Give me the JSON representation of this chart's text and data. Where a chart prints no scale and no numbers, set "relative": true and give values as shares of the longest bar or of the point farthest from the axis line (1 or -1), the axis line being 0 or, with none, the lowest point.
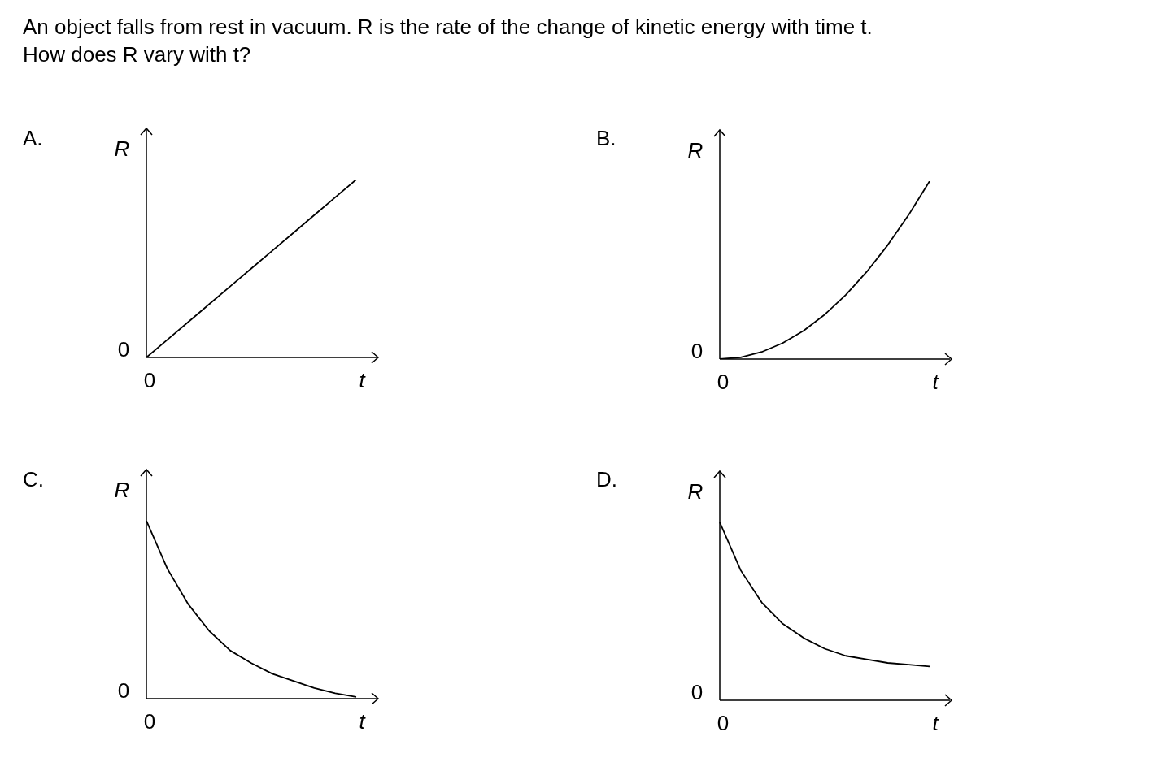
{
  "chart_data": [
    {
      "type": "line",
      "title": "A.",
      "subtitle": "An object falls from rest in vacuum. R is the rate of the change of kinetic energy with time t.\nHow does R vary with t?",
      "xlabel": "t",
      "ylabel": "R",
      "relative": true,
      "annotations": [
        "0",
        "0"
      ],
      "categories": [
        null,
        null,
        null,
        null,
        null,
        null,
        null,
        null,
        null,
        null,
        null
      ],
      "series": [
        {
          "color": "#000000",
          "values": [
            0,
            0.1,
            0.2,
            0.3,
            0.4,
            0.5,
            0.6,
            0.7,
            0.8,
            0.9,
            1
          ]
        }
      ]
    },
    {
      "type": "line",
      "title": "B.",
      "xlabel": "t",
      "ylabel": "R",
      "relative": true,
      "annotations": [
        "0",
        "0"
      ],
      "categories": [
        null,
        null,
        null,
        null,
        null,
        null,
        null,
        null,
        null,
        null,
        null
      ],
      "series": [
        {
          "color": "#000000",
          "values": [
            0,
            0.01,
            0.04,
            0.09,
            0.16,
            0.25,
            0.36,
            0.49,
            0.64,
            0.81,
            1
          ]
        }
      ]
    },
    {
      "type": "line",
      "title": "C.",
      "xlabel": "t",
      "ylabel": "R",
      "relative": true,
      "annotations": [
        "0",
        "0"
      ],
      "categories": [
        null,
        null,
        null,
        null,
        null,
        null,
        null,
        null,
        null,
        null,
        null
      ],
      "series": [
        {
          "color": "#000000",
          "values": [
            1,
            0.73,
            0.53,
            0.38,
            0.27,
            0.2,
            0.14,
            0.1,
            0.06,
            0.03,
            0.01
          ]
        }
      ]
    },
    {
      "type": "line",
      "title": "D.",
      "xlabel": "t",
      "ylabel": "R",
      "relative": true,
      "annotations": [
        "0",
        "0"
      ],
      "categories": [
        null,
        null,
        null,
        null,
        null,
        null,
        null,
        null,
        null,
        null,
        null
      ],
      "series": [
        {
          "color": "#000000",
          "values": [
            1,
            0.73,
            0.55,
            0.43,
            0.35,
            0.29,
            0.25,
            0.23,
            0.21,
            0.2,
            0.19
          ]
        }
      ]
    }
  ]
}
